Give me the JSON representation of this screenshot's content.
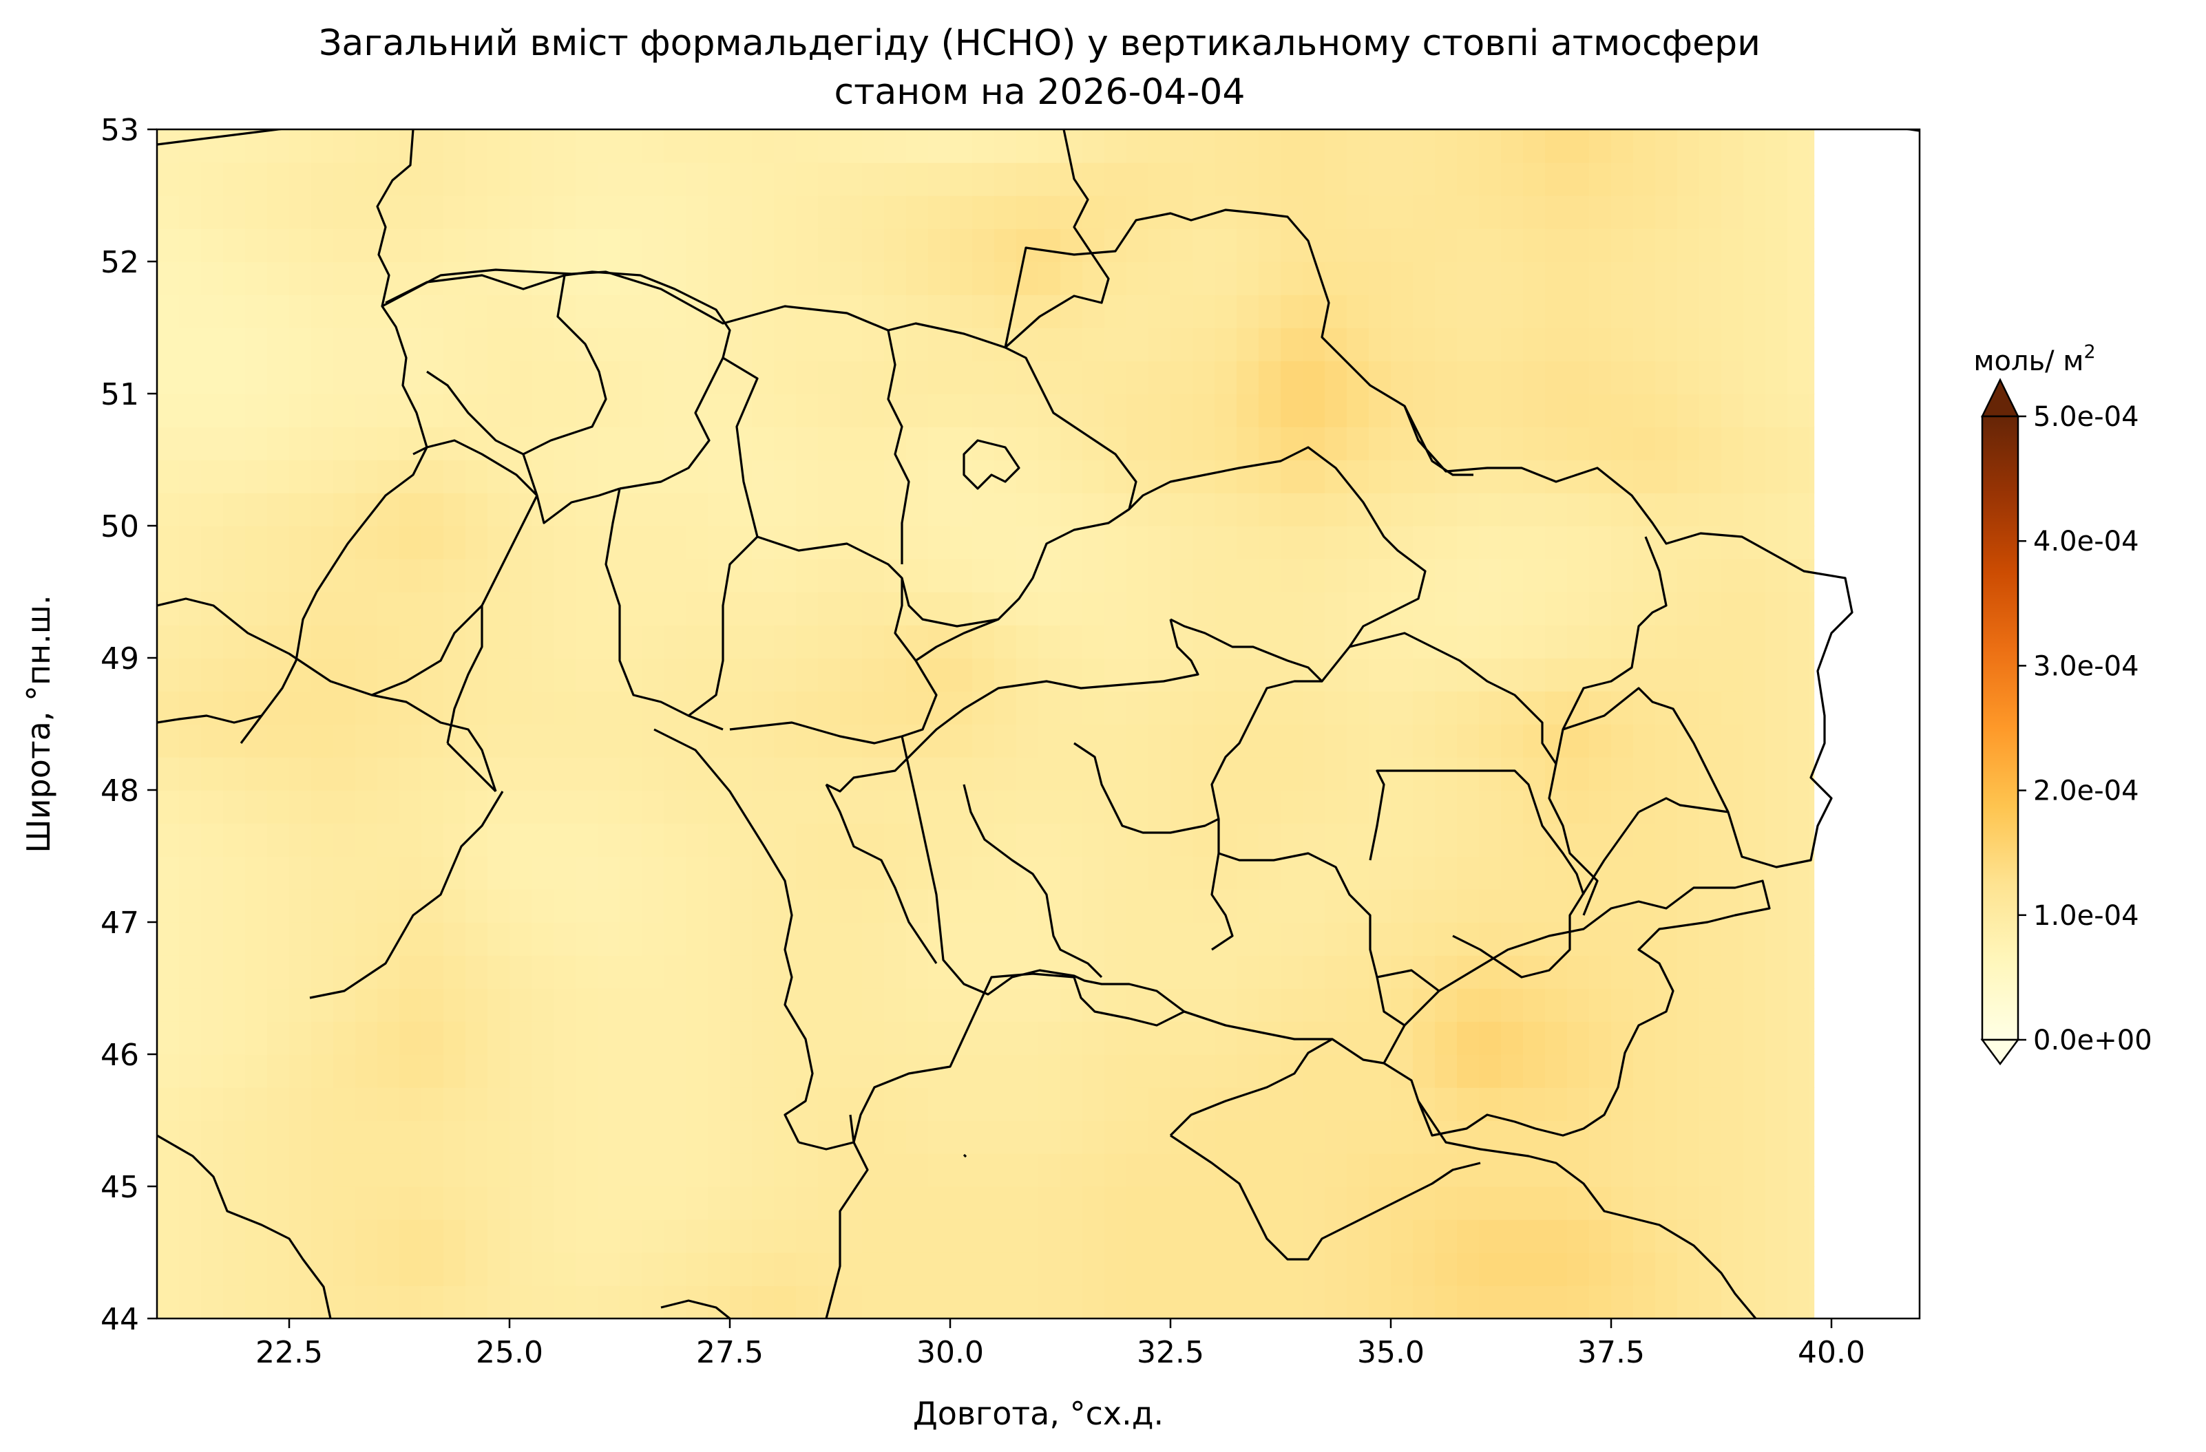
{
  "title": {
    "line1": "Загальний вміст формальдегіду (HCHO) у вертикальному стовпі атмосфери",
    "line2": "станом на 2026-04-04"
  },
  "chart_data": {
    "type": "heatmap",
    "title": "Загальний вміст формальдегіду (HCHO) у вертикальному стовпі атмосфери станом на 2026-04-04",
    "xlabel": "Довгота, °сх.д.",
    "ylabel": "Широта, °пн.ш.",
    "xlim": [
      21,
      41
    ],
    "ylim": [
      44,
      53
    ],
    "x_ticks": [
      22.5,
      25.0,
      27.5,
      30.0,
      32.5,
      35.0,
      37.5,
      40.0
    ],
    "x_tick_labels": [
      "22.5",
      "25.0",
      "27.5",
      "30.0",
      "32.5",
      "35.0",
      "37.5",
      "40.0"
    ],
    "y_ticks": [
      44,
      45,
      46,
      47,
      48,
      49,
      50,
      51,
      52,
      53
    ],
    "y_tick_labels": [
      "44",
      "45",
      "46",
      "47",
      "48",
      "49",
      "50",
      "51",
      "52",
      "53"
    ],
    "data_lon_extent": [
      21,
      39.8
    ],
    "colorbar": {
      "label": "моль/ м²",
      "label_text": "моль/ м",
      "label_sup": "2",
      "min": 0,
      "max": 0.0005,
      "ticks": [
        0,
        0.0001,
        0.0002,
        0.0003,
        0.0004,
        0.0005
      ],
      "tick_labels": [
        "0.0e+00",
        "1.0e-04",
        "2.0e-04",
        "3.0e-04",
        "4.0e-04",
        "5.0e-04"
      ],
      "extend": "both",
      "colors": [
        "#ffffe5",
        "#fff7bc",
        "#fee391",
        "#fec44f",
        "#fe9929",
        "#ec7014",
        "#cc4c02",
        "#993404",
        "#662506"
      ]
    },
    "field_estimate": {
      "description": "approximate HCHO column field (mol/m2)",
      "lon": [
        21,
        22,
        23,
        24,
        25,
        26,
        27,
        28,
        29,
        30,
        31,
        32,
        33,
        34,
        35,
        36,
        37,
        38,
        39,
        39.8
      ],
      "lat": [
        53,
        52.5,
        52,
        51.5,
        51,
        50.5,
        50,
        49.5,
        49,
        48.5,
        48,
        47.5,
        47,
        46.5,
        46,
        45.5,
        45,
        44.5,
        44
      ],
      "values": [
        [
          8e-05,
          8e-05,
          9e-05,
          0.0001,
          9e-05,
          8e-05,
          9e-05,
          9e-05,
          8e-05,
          7e-05,
          8e-05,
          0.0001,
          0.00011,
          0.00012,
          0.00011,
          0.00012,
          0.00014,
          0.00012,
          0.0001,
          9e-05
        ],
        [
          8e-05,
          9e-05,
          0.0001,
          0.0001,
          9e-05,
          8e-05,
          8e-05,
          9e-05,
          0.0001,
          0.00011,
          0.00012,
          0.00012,
          0.00011,
          0.00012,
          0.00011,
          0.00012,
          0.00013,
          0.00012,
          0.0001,
          9e-05
        ],
        [
          7e-05,
          8e-05,
          9e-05,
          9e-05,
          8e-05,
          7e-05,
          8e-05,
          9e-05,
          0.0001,
          0.00012,
          0.00014,
          0.00011,
          0.0001,
          0.00012,
          0.00012,
          0.00011,
          0.00012,
          0.00011,
          0.0001,
          9e-05
        ],
        [
          7e-05,
          7e-05,
          8e-05,
          8e-05,
          9e-05,
          8e-05,
          8e-05,
          9e-05,
          9e-05,
          0.0001,
          0.00011,
          0.0001,
          0.00011,
          0.00014,
          0.00012,
          0.00011,
          0.00012,
          0.00011,
          0.0001,
          9e-05
        ],
        [
          7e-05,
          7e-05,
          8e-05,
          8e-05,
          9e-05,
          9e-05,
          8e-05,
          9e-05,
          0.0001,
          0.0001,
          0.0001,
          0.00011,
          0.00012,
          0.00016,
          0.00013,
          0.00012,
          0.00013,
          0.00012,
          0.0001,
          9e-05
        ],
        [
          8e-05,
          8e-05,
          9e-05,
          0.0001,
          9e-05,
          8e-05,
          8e-05,
          8e-05,
          9e-05,
          8e-05,
          9e-05,
          0.00011,
          0.00012,
          0.00014,
          0.00012,
          0.00011,
          0.00012,
          0.00013,
          0.00011,
          0.0001
        ],
        [
          9e-05,
          0.0001,
          0.00011,
          0.00013,
          0.0001,
          9e-05,
          9e-05,
          8e-05,
          9e-05,
          8e-05,
          8e-05,
          9e-05,
          0.0001,
          0.00011,
          0.0001,
          9e-05,
          9e-05,
          0.0001,
          0.0001,
          9e-05
        ],
        [
          9e-05,
          0.0001,
          0.00011,
          0.00011,
          0.0001,
          9e-05,
          9e-05,
          9e-05,
          0.0001,
          9e-05,
          8e-05,
          9e-05,
          0.0001,
          0.0001,
          9e-05,
          8e-05,
          9e-05,
          0.0001,
          0.00011,
          0.0001
        ],
        [
          0.0001,
          0.00011,
          0.00012,
          0.00011,
          0.0001,
          9e-05,
          0.0001,
          0.0001,
          0.00011,
          0.00013,
          0.0001,
          9e-05,
          0.0001,
          0.0001,
          9e-05,
          9e-05,
          0.0001,
          0.00011,
          0.00011,
          0.0001
        ],
        [
          0.00011,
          0.00012,
          0.00012,
          0.00011,
          0.0001,
          0.0001,
          0.0001,
          0.00011,
          0.00012,
          0.00012,
          0.0001,
          0.0001,
          0.00011,
          0.00011,
          0.0001,
          0.00012,
          0.00014,
          0.00012,
          0.00011,
          0.0001
        ],
        [
          9e-05,
          0.0001,
          0.00011,
          0.0001,
          9e-05,
          9e-05,
          0.0001,
          0.0001,
          0.0001,
          0.0001,
          0.0001,
          0.0001,
          0.00011,
          0.00011,
          0.0001,
          0.00011,
          0.00013,
          0.00012,
          0.00011,
          0.0001
        ],
        [
          8e-05,
          9e-05,
          0.0001,
          0.0001,
          8e-05,
          8e-05,
          9e-05,
          0.0001,
          0.00011,
          0.0001,
          9e-05,
          0.0001,
          0.00011,
          0.0001,
          0.0001,
          0.00011,
          0.00012,
          0.00012,
          0.00011,
          0.0001
        ],
        [
          8e-05,
          9e-05,
          0.0001,
          0.00011,
          9e-05,
          8e-05,
          9e-05,
          0.0001,
          0.0001,
          9e-05,
          9e-05,
          0.0001,
          0.0001,
          0.0001,
          0.00011,
          0.00012,
          0.00012,
          0.00012,
          0.00011,
          0.0001
        ],
        [
          8e-05,
          9e-05,
          0.0001,
          0.00012,
          0.0001,
          9e-05,
          9e-05,
          0.0001,
          0.0001,
          9e-05,
          9e-05,
          0.0001,
          0.0001,
          0.00011,
          0.00012,
          0.00014,
          0.00013,
          0.00012,
          0.00011,
          0.0001
        ],
        [
          8e-05,
          9e-05,
          0.00011,
          0.00013,
          0.0001,
          9e-05,
          9e-05,
          0.0001,
          0.0001,
          0.0001,
          0.0001,
          0.00011,
          0.00011,
          0.00012,
          0.00012,
          0.00016,
          0.00014,
          0.00012,
          0.00011,
          0.0001
        ],
        [
          9e-05,
          0.0001,
          0.00011,
          0.00011,
          0.0001,
          9e-05,
          9e-05,
          0.0001,
          0.00011,
          0.0001,
          0.0001,
          0.00011,
          0.00012,
          0.00012,
          0.00012,
          0.00013,
          0.00013,
          0.00012,
          0.00011,
          0.0001
        ],
        [
          9e-05,
          0.0001,
          0.00011,
          0.00011,
          0.0001,
          9e-05,
          9e-05,
          0.0001,
          0.00011,
          0.00011,
          0.00011,
          0.00012,
          0.00012,
          0.00012,
          0.00013,
          0.00013,
          0.00013,
          0.00012,
          0.00011,
          0.0001
        ],
        [
          9e-05,
          0.0001,
          0.00011,
          0.00013,
          0.0001,
          9e-05,
          0.0001,
          0.00011,
          0.00011,
          0.00011,
          0.00011,
          0.00012,
          0.00012,
          0.00012,
          0.00013,
          0.00015,
          0.00015,
          0.00013,
          0.00011,
          0.0001
        ],
        [
          9e-05,
          0.0001,
          0.00011,
          0.00011,
          0.0001,
          0.0001,
          0.00011,
          0.00013,
          0.00011,
          0.00011,
          0.00011,
          0.00012,
          0.00012,
          0.00012,
          0.00013,
          0.00014,
          0.00014,
          0.00013,
          0.00011,
          0.0001
        ]
      ]
    },
    "map_layers": [
      "coastlines",
      "country borders",
      "Ukrainian oblast borders"
    ]
  }
}
